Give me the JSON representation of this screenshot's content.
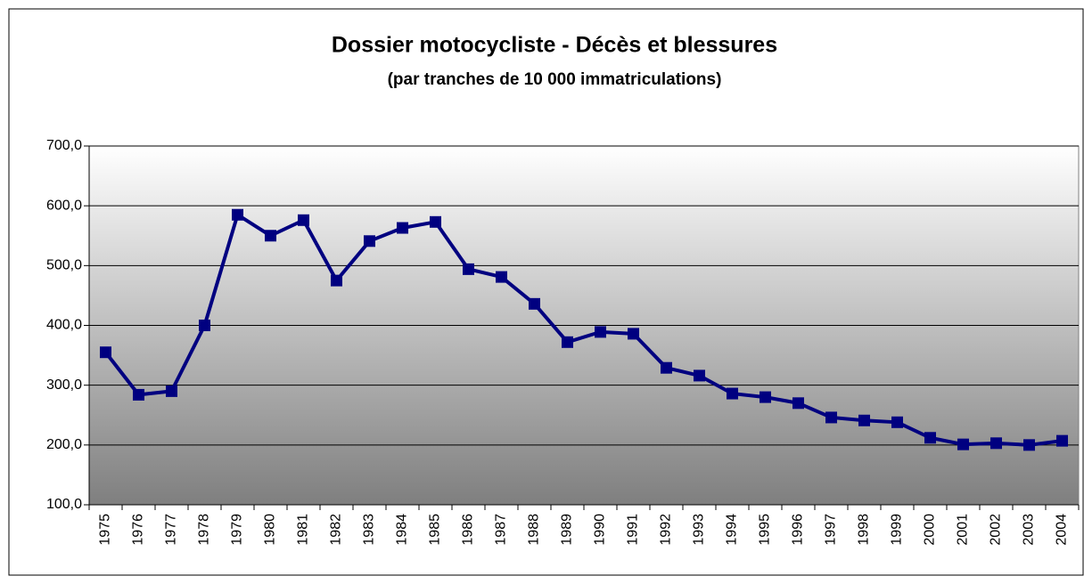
{
  "chart_data": {
    "type": "line",
    "title": "Dossier motocycliste - Décès et blessures",
    "subtitle": "(par tranches de 10 000 immatriculations)",
    "categories": [
      "1975",
      "1976",
      "1977",
      "1978",
      "1979",
      "1980",
      "1981",
      "1982",
      "1983",
      "1984",
      "1985",
      "1986",
      "1987",
      "1988",
      "1989",
      "1990",
      "1991",
      "1992",
      "1993",
      "1994",
      "1995",
      "1996",
      "1997",
      "1998",
      "1999",
      "2000",
      "2001",
      "2002",
      "2003",
      "2004"
    ],
    "series": [
      {
        "color": "#000080",
        "values": [
          355,
          284,
          290,
          400,
          585,
          550,
          576,
          475,
          541,
          563,
          573,
          494,
          481,
          436,
          372,
          389,
          386,
          329,
          316,
          286,
          280,
          270,
          246,
          241,
          238,
          212,
          201,
          203,
          200,
          207
        ]
      }
    ],
    "ylim": [
      100,
      700
    ],
    "yticks": [
      {
        "value": 100,
        "label": "100,0"
      },
      {
        "value": 200,
        "label": "200,0"
      },
      {
        "value": 300,
        "label": "300,0"
      },
      {
        "value": 400,
        "label": "400,0"
      },
      {
        "value": 500,
        "label": "500,0"
      },
      {
        "value": 600,
        "label": "600,0"
      },
      {
        "value": 700,
        "label": "700,0"
      }
    ],
    "grid": true
  }
}
